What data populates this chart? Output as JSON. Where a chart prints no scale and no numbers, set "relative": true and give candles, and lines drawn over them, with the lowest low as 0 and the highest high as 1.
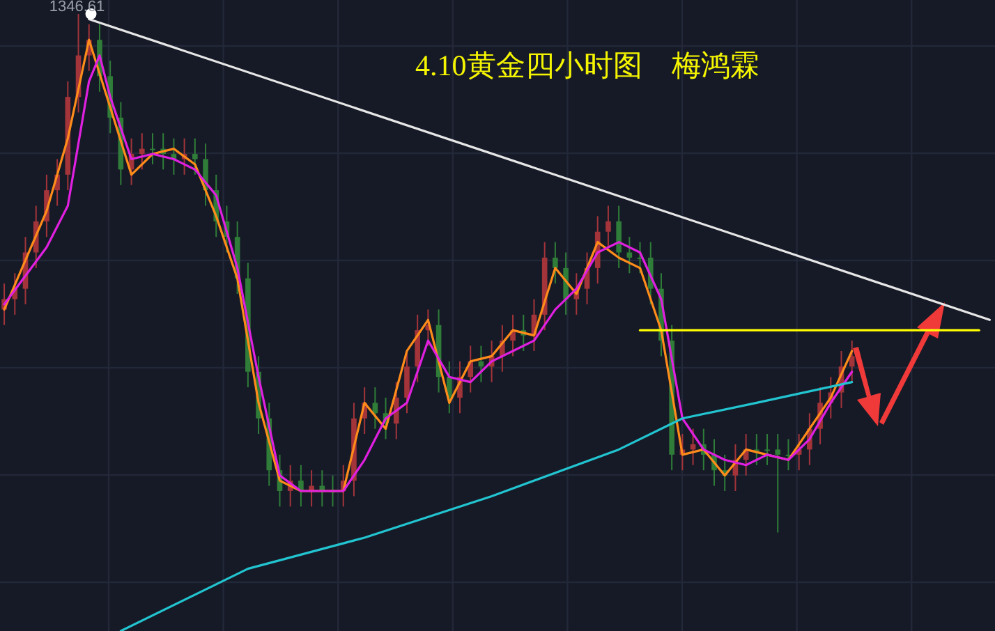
{
  "chart_data": {
    "type": "candlestick",
    "title": "4.10黄金四小时图　梅鸿霖",
    "relative": true,
    "grid": true,
    "annotations": [
      "1346.61"
    ],
    "categories": [
      null,
      null,
      null,
      null,
      null,
      null,
      null,
      null,
      null,
      null,
      null,
      null,
      null,
      null,
      null,
      null,
      null,
      null,
      null,
      null,
      null,
      null,
      null,
      null,
      null,
      null,
      null,
      null,
      null,
      null,
      null,
      null,
      null,
      null,
      null,
      null,
      null,
      null,
      null,
      null,
      null,
      null,
      null,
      null,
      null,
      null,
      null,
      null,
      null,
      null,
      null,
      null,
      null,
      null,
      null,
      null,
      null,
      null,
      null,
      null,
      null,
      null,
      null,
      null,
      null,
      null,
      null,
      null,
      null,
      null,
      null,
      null,
      null,
      null,
      null,
      null,
      null,
      null,
      null,
      null,
      null,
      null,
      null,
      null,
      null,
      null,
      null,
      null,
      null,
      null,
      null,
      null,
      null,
      null
    ],
    "ohlc": [
      [
        0.43,
        0.48,
        0.4,
        0.45
      ],
      [
        0.45,
        0.5,
        0.42,
        0.47
      ],
      [
        0.47,
        0.57,
        0.44,
        0.54
      ],
      [
        0.54,
        0.63,
        0.51,
        0.6
      ],
      [
        0.6,
        0.69,
        0.57,
        0.66
      ],
      [
        0.66,
        0.72,
        0.63,
        0.69
      ],
      [
        0.69,
        0.87,
        0.66,
        0.84
      ],
      [
        0.84,
        1.0,
        0.81,
        0.92
      ],
      [
        0.92,
        0.98,
        0.89,
        0.95
      ],
      [
        0.95,
        0.98,
        0.85,
        0.88
      ],
      [
        0.88,
        0.91,
        0.77,
        0.8
      ],
      [
        0.8,
        0.83,
        0.67,
        0.7
      ],
      [
        0.7,
        0.76,
        0.67,
        0.73
      ],
      [
        0.73,
        0.77,
        0.7,
        0.74
      ],
      [
        0.74,
        0.77,
        0.71,
        0.74
      ],
      [
        0.74,
        0.77,
        0.7,
        0.73
      ],
      [
        0.73,
        0.76,
        0.69,
        0.72
      ],
      [
        0.72,
        0.76,
        0.69,
        0.73
      ],
      [
        0.73,
        0.76,
        0.69,
        0.72
      ],
      [
        0.72,
        0.75,
        0.63,
        0.66
      ],
      [
        0.66,
        0.69,
        0.57,
        0.6
      ],
      [
        0.6,
        0.63,
        0.54,
        0.57
      ],
      [
        0.57,
        0.6,
        0.46,
        0.49
      ],
      [
        0.49,
        0.52,
        0.28,
        0.31
      ],
      [
        0.31,
        0.34,
        0.19,
        0.22
      ],
      [
        0.22,
        0.25,
        0.09,
        0.12
      ],
      [
        0.12,
        0.15,
        0.05,
        0.08
      ],
      [
        0.08,
        0.13,
        0.05,
        0.1
      ],
      [
        0.1,
        0.13,
        0.05,
        0.08
      ],
      [
        0.08,
        0.12,
        0.05,
        0.09
      ],
      [
        0.09,
        0.12,
        0.05,
        0.08
      ],
      [
        0.08,
        0.11,
        0.05,
        0.08
      ],
      [
        0.08,
        0.13,
        0.05,
        0.1
      ],
      [
        0.1,
        0.25,
        0.07,
        0.22
      ],
      [
        0.22,
        0.28,
        0.19,
        0.25
      ],
      [
        0.25,
        0.28,
        0.2,
        0.23
      ],
      [
        0.23,
        0.26,
        0.18,
        0.21
      ],
      [
        0.21,
        0.29,
        0.18,
        0.26
      ],
      [
        0.26,
        0.35,
        0.23,
        0.32
      ],
      [
        0.32,
        0.42,
        0.29,
        0.39
      ],
      [
        0.39,
        0.43,
        0.36,
        0.4
      ],
      [
        0.4,
        0.43,
        0.27,
        0.3
      ],
      [
        0.3,
        0.33,
        0.23,
        0.26
      ],
      [
        0.26,
        0.33,
        0.23,
        0.3
      ],
      [
        0.3,
        0.36,
        0.27,
        0.33
      ],
      [
        0.33,
        0.36,
        0.29,
        0.32
      ],
      [
        0.32,
        0.37,
        0.29,
        0.34
      ],
      [
        0.34,
        0.4,
        0.31,
        0.37
      ],
      [
        0.37,
        0.42,
        0.34,
        0.39
      ],
      [
        0.39,
        0.42,
        0.35,
        0.38
      ],
      [
        0.38,
        0.45,
        0.35,
        0.42
      ],
      [
        0.42,
        0.56,
        0.39,
        0.53
      ],
      [
        0.53,
        0.56,
        0.48,
        0.51
      ],
      [
        0.51,
        0.54,
        0.42,
        0.45
      ],
      [
        0.45,
        0.5,
        0.42,
        0.47
      ],
      [
        0.47,
        0.54,
        0.44,
        0.51
      ],
      [
        0.51,
        0.61,
        0.48,
        0.58
      ],
      [
        0.58,
        0.63,
        0.55,
        0.6
      ],
      [
        0.6,
        0.63,
        0.51,
        0.54
      ],
      [
        0.54,
        0.57,
        0.5,
        0.53
      ],
      [
        0.53,
        0.56,
        0.5,
        0.53
      ],
      [
        0.53,
        0.56,
        0.44,
        0.47
      ],
      [
        0.47,
        0.5,
        0.34,
        0.37
      ],
      [
        0.37,
        0.4,
        0.12,
        0.15
      ],
      [
        0.15,
        0.19,
        0.12,
        0.16
      ],
      [
        0.16,
        0.2,
        0.13,
        0.17
      ],
      [
        0.17,
        0.2,
        0.12,
        0.15
      ],
      [
        0.15,
        0.18,
        0.09,
        0.12
      ],
      [
        0.12,
        0.15,
        0.08,
        0.11
      ],
      [
        0.11,
        0.17,
        0.08,
        0.14
      ],
      [
        0.14,
        0.19,
        0.11,
        0.16
      ],
      [
        0.16,
        0.19,
        0.13,
        0.16
      ],
      [
        0.16,
        0.19,
        0.13,
        0.16
      ],
      [
        0.16,
        0.19,
        0.0,
        0.15
      ],
      [
        0.15,
        0.18,
        0.12,
        0.15
      ],
      [
        0.15,
        0.19,
        0.12,
        0.16
      ],
      [
        0.16,
        0.23,
        0.13,
        0.2
      ],
      [
        0.2,
        0.28,
        0.17,
        0.25
      ],
      [
        0.25,
        0.3,
        0.22,
        0.27
      ],
      [
        0.27,
        0.35,
        0.24,
        0.32
      ],
      [
        0.32,
        0.37,
        0.29,
        0.34
      ],
      null,
      null,
      null,
      null,
      null,
      null,
      null,
      null,
      null,
      null,
      null,
      null,
      null
    ],
    "series": [
      {
        "type": "line",
        "color": "#ff8c1a",
        "values": [
          0.43,
          null,
          null,
          null,
          0.62,
          null,
          0.76,
          null,
          0.95,
          null,
          0.82,
          null,
          0.69,
          null,
          0.73,
          null,
          0.74,
          null,
          0.71,
          null,
          0.61,
          null,
          0.49,
          null,
          0.25,
          null,
          0.1,
          null,
          0.08,
          null,
          0.08,
          null,
          0.08,
          null,
          0.25,
          null,
          0.2,
          null,
          0.35,
          null,
          0.41,
          null,
          0.25,
          null,
          0.33,
          null,
          0.34,
          null,
          0.39,
          null,
          0.38,
          null,
          0.51,
          null,
          0.46,
          null,
          0.56,
          null,
          0.53,
          null,
          0.51,
          null,
          0.39,
          null,
          0.15,
          null,
          0.16,
          null,
          0.11,
          null,
          0.16,
          null,
          0.15,
          null,
          0.14,
          null,
          0.2,
          null,
          0.26,
          null,
          0.35,
          null,
          null,
          null,
          null,
          null,
          null,
          null,
          null,
          null,
          null,
          null,
          null,
          null
        ]
      },
      {
        "type": "line",
        "color": "#e020e0",
        "values": [
          0.44,
          null,
          null,
          null,
          0.55,
          null,
          0.63,
          null,
          0.87,
          0.92,
          0.84,
          null,
          0.72,
          null,
          0.73,
          null,
          0.72,
          null,
          0.7,
          null,
          0.65,
          null,
          0.51,
          null,
          0.3,
          null,
          0.11,
          null,
          0.08,
          null,
          0.08,
          null,
          0.08,
          null,
          0.14,
          null,
          0.22,
          null,
          0.25,
          null,
          0.37,
          null,
          0.3,
          null,
          0.29,
          null,
          0.33,
          null,
          0.35,
          null,
          0.37,
          null,
          0.43,
          null,
          0.47,
          null,
          0.54,
          null,
          0.56,
          null,
          0.54,
          null,
          0.45,
          null,
          0.22,
          null,
          0.16,
          null,
          0.14,
          null,
          0.13,
          null,
          0.15,
          null,
          0.14,
          null,
          0.18,
          null,
          0.25,
          null,
          0.31,
          null,
          null,
          null,
          null,
          null,
          null,
          null,
          null,
          null,
          null,
          null,
          null,
          null
        ]
      },
      {
        "type": "line",
        "color": "#22c4d0",
        "values": [
          null,
          null,
          null,
          null,
          null,
          null,
          null,
          null,
          null,
          null,
          null,
          -0.19,
          null,
          null,
          null,
          null,
          null,
          null,
          null,
          null,
          null,
          null,
          null,
          -0.07,
          null,
          null,
          null,
          null,
          null,
          null,
          null,
          null,
          null,
          null,
          -0.01,
          null,
          null,
          null,
          null,
          null,
          null,
          null,
          null,
          null,
          null,
          null,
          0.07,
          null,
          null,
          null,
          null,
          null,
          null,
          null,
          null,
          null,
          null,
          null,
          0.16,
          null,
          null,
          null,
          null,
          null,
          0.22,
          null,
          null,
          null,
          null,
          null,
          null,
          0.25,
          null,
          null,
          null,
          null,
          null,
          null,
          null,
          null,
          0.29,
          null,
          null,
          null,
          null,
          null,
          null,
          null,
          null,
          null,
          null,
          null,
          null,
          null
        ]
      },
      {
        "type": "line",
        "color": "#e6e6e6",
        "values": [
          null,
          null,
          null,
          null,
          null,
          null,
          null,
          null,
          0.99,
          null,
          null,
          null,
          null,
          null,
          null,
          null,
          null,
          null,
          null,
          null,
          null,
          null,
          null,
          null,
          null,
          null,
          null,
          null,
          null,
          null,
          null,
          null,
          null,
          null,
          null,
          null,
          null,
          null,
          null,
          null,
          null,
          null,
          null,
          null,
          null,
          null,
          null,
          null,
          null,
          null,
          null,
          null,
          null,
          null,
          null,
          null,
          null,
          null,
          null,
          null,
          null,
          null,
          null,
          null,
          null,
          null,
          null,
          null,
          null,
          null,
          null,
          null,
          null,
          null,
          null,
          null,
          null,
          null,
          null,
          null,
          null,
          null,
          null,
          null,
          null,
          null,
          null,
          null,
          null,
          null,
          null,
          null,
          null,
          0.41
        ]
      },
      {
        "type": "line",
        "color": "#ffff00",
        "values": [
          null,
          null,
          null,
          null,
          null,
          null,
          null,
          null,
          null,
          null,
          null,
          null,
          null,
          null,
          null,
          null,
          null,
          null,
          null,
          null,
          null,
          null,
          null,
          null,
          null,
          null,
          null,
          null,
          null,
          null,
          null,
          null,
          null,
          null,
          null,
          null,
          null,
          null,
          null,
          null,
          null,
          null,
          null,
          null,
          null,
          null,
          null,
          null,
          null,
          null,
          null,
          null,
          null,
          null,
          null,
          null,
          null,
          null,
          null,
          null,
          0.39,
          null,
          null,
          null,
          null,
          null,
          null,
          null,
          null,
          null,
          null,
          null,
          null,
          null,
          null,
          null,
          null,
          null,
          null,
          null,
          null,
          null,
          null,
          null,
          null,
          null,
          null,
          null,
          null,
          null,
          null,
          null,
          0.39,
          null
        ]
      }
    ]
  }
}
